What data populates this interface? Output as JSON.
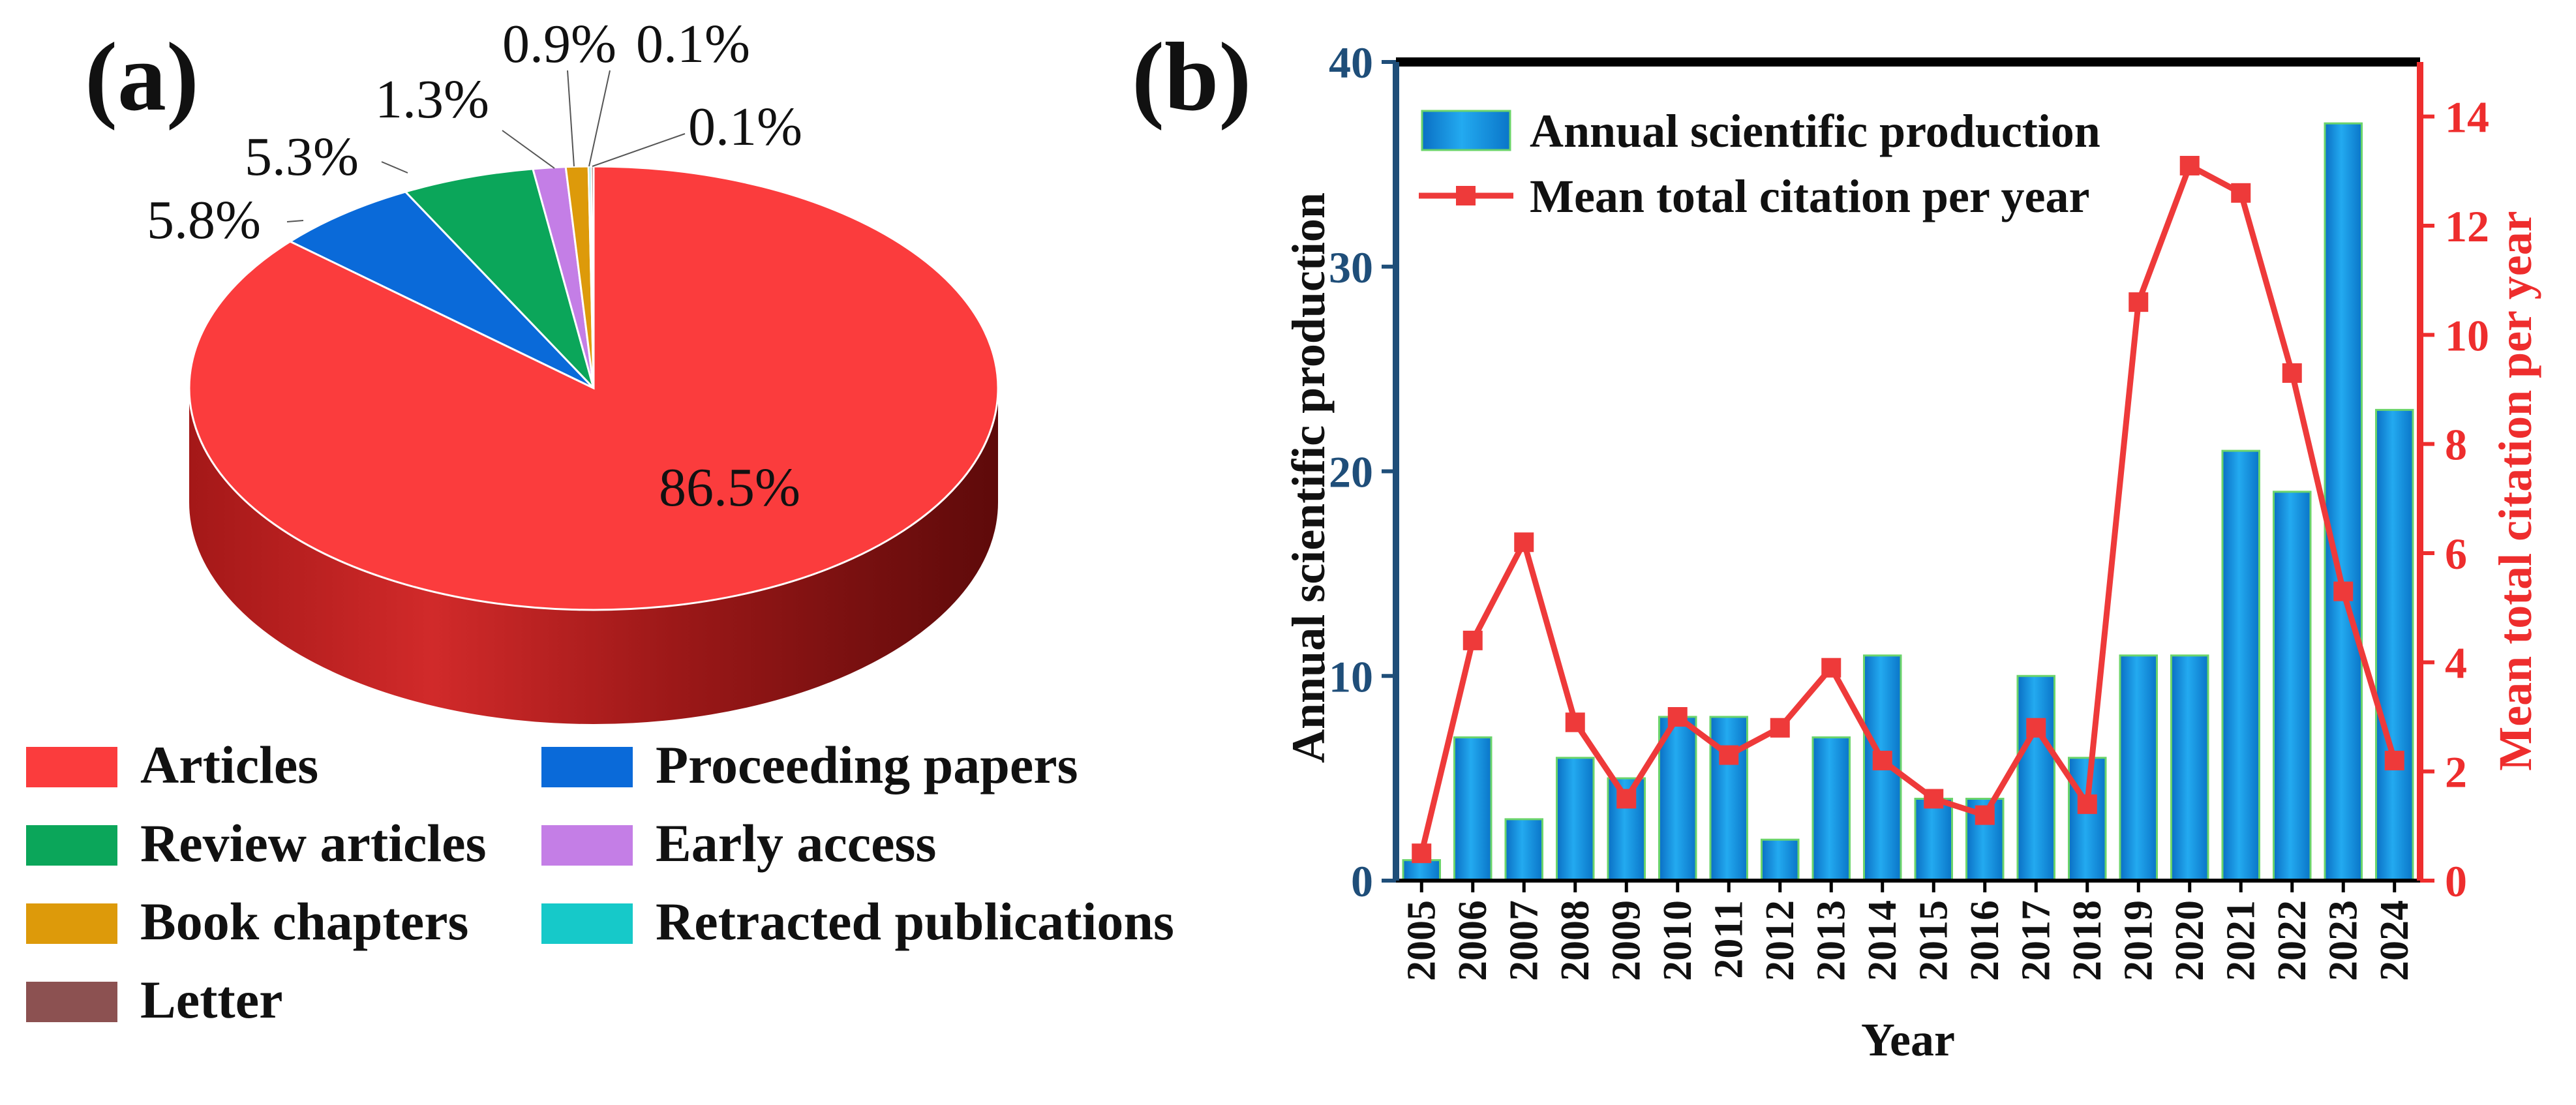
{
  "panel_a": {
    "label": "(a)",
    "chart_data": {
      "type": "pie",
      "slices": [
        {
          "name": "Articles",
          "value": 86.5,
          "label": "86.5%",
          "color": "#fb3c3d"
        },
        {
          "name": "Proceeding papers",
          "value": 5.8,
          "label": "5.8%",
          "color": "#0a6ad9"
        },
        {
          "name": "Review articles",
          "value": 5.3,
          "label": "5.3%",
          "color": "#0ba65a"
        },
        {
          "name": "Early access",
          "value": 1.3,
          "label": "1.3%",
          "color": "#c47ee6"
        },
        {
          "name": "Book chapters",
          "value": 0.9,
          "label": "0.9%",
          "color": "#dd9a0a"
        },
        {
          "name": "Retracted publications",
          "value": 0.1,
          "label": "0.1%",
          "color": "#16c9c9"
        },
        {
          "name": "Letter",
          "value": 0.1,
          "label": "0.1%",
          "color": "#8c5151"
        }
      ],
      "legend": [
        "Articles",
        "Proceeding papers",
        "Review articles",
        "Early access",
        "Book chapters",
        "Retracted publications",
        "Letter"
      ]
    }
  },
  "panel_b": {
    "label": "(b)",
    "chart_data": {
      "type": "bar",
      "x_label": "Year",
      "y_left_label": "Annual scientific production",
      "y_right_label": "Mean total citation per year",
      "categories": [
        "2005",
        "2006",
        "2007",
        "2008",
        "2009",
        "2010",
        "2011",
        "2012",
        "2013",
        "2014",
        "2015",
        "2016",
        "2017",
        "2018",
        "2019",
        "2020",
        "2021",
        "2022",
        "2023",
        "2024"
      ],
      "series": [
        {
          "name": "Annual scientific production",
          "kind": "bar",
          "axis": "left",
          "values": [
            1,
            7,
            3,
            6,
            5,
            8,
            8,
            2,
            7,
            11,
            4,
            4,
            10,
            6,
            11,
            11,
            21,
            19,
            37,
            23
          ]
        },
        {
          "name": "Mean total citation per year",
          "kind": "line",
          "axis": "right",
          "values": [
            0.5,
            4.4,
            6.2,
            2.9,
            1.5,
            3.0,
            2.3,
            2.8,
            3.9,
            2.2,
            1.5,
            1.2,
            2.8,
            1.4,
            10.6,
            13.1,
            12.6,
            9.3,
            5.3,
            2.2
          ]
        }
      ],
      "y_left_range": [
        0,
        40
      ],
      "y_left_ticks": [
        "0",
        "10",
        "20",
        "30",
        "40"
      ],
      "y_right_range": [
        0,
        15
      ],
      "y_right_ticks": [
        "0",
        "2",
        "4",
        "6",
        "8",
        "10",
        "12",
        "14"
      ],
      "legend_position": "top-left",
      "colors": {
        "left_axis": "#1f4e79",
        "right_axis": "#ee2d2d",
        "bar": "#1a9be6",
        "line": "#ee3a3a"
      }
    }
  }
}
